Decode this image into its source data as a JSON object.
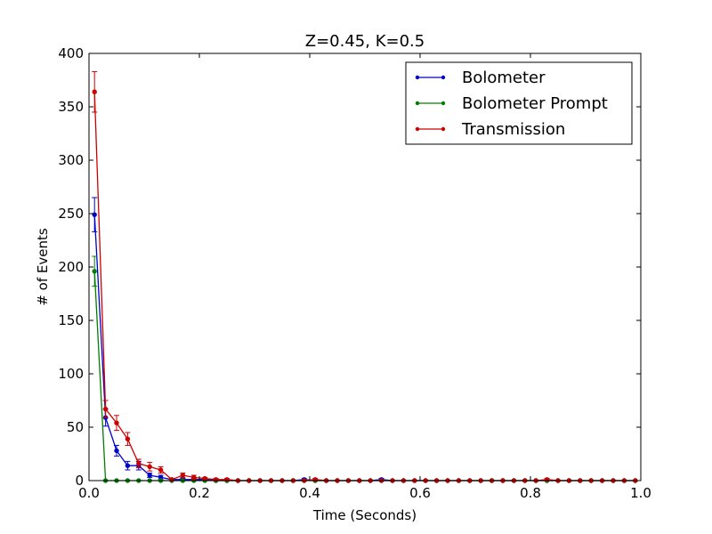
{
  "chart_data": {
    "type": "line",
    "title": "Z=0.45, K=0.5",
    "xlabel": "Time (Seconds)",
    "ylabel": "# of Events",
    "xlim": [
      0.0,
      1.0
    ],
    "ylim": [
      0,
      400
    ],
    "x_ticks": [
      0.0,
      0.2,
      0.4,
      0.6,
      0.8,
      1.0
    ],
    "x_tick_labels": [
      "0.0",
      "0.2",
      "0.4",
      "0.6",
      "0.8",
      "1.0"
    ],
    "y_ticks": [
      0,
      50,
      100,
      150,
      200,
      250,
      300,
      350,
      400
    ],
    "y_tick_labels": [
      "0",
      "50",
      "100",
      "150",
      "200",
      "250",
      "300",
      "350",
      "400"
    ],
    "grid": false,
    "legend_position": "top-right",
    "x": [
      0.01,
      0.03,
      0.05,
      0.07,
      0.09,
      0.11,
      0.13,
      0.15,
      0.17,
      0.19,
      0.21,
      0.23,
      0.25,
      0.27,
      0.29,
      0.31,
      0.33,
      0.35,
      0.37,
      0.39,
      0.41,
      0.43,
      0.45,
      0.47,
      0.49,
      0.51,
      0.53,
      0.55,
      0.57,
      0.59,
      0.61,
      0.63,
      0.65,
      0.67,
      0.69,
      0.71,
      0.73,
      0.75,
      0.77,
      0.79,
      0.81,
      0.83,
      0.85,
      0.87,
      0.89,
      0.91,
      0.93,
      0.95,
      0.97,
      0.99
    ],
    "series": [
      {
        "name": "Bolometer",
        "color": "#0000cc",
        "values": [
          249,
          59,
          28,
          14,
          14,
          5,
          3,
          1,
          1,
          1,
          1,
          0,
          0,
          0,
          0,
          0,
          0,
          0,
          0,
          1,
          0,
          0,
          0,
          0,
          0,
          0,
          1,
          0,
          0,
          0,
          0,
          0,
          0,
          0,
          0,
          0,
          0,
          0,
          0,
          0,
          0,
          0,
          0,
          0,
          0,
          0,
          0,
          0,
          0,
          0
        ],
        "errors": [
          16,
          8,
          5,
          4,
          4,
          2,
          2,
          1,
          1,
          1,
          1,
          0,
          0,
          0,
          0,
          0,
          0,
          0,
          0,
          1,
          0,
          0,
          0,
          0,
          0,
          0,
          1,
          0,
          0,
          0,
          0,
          0,
          0,
          0,
          0,
          0,
          0,
          0,
          0,
          0,
          0,
          0,
          0,
          0,
          0,
          0,
          0,
          0,
          0,
          0
        ]
      },
      {
        "name": "Bolometer Prompt",
        "color": "#008000",
        "values": [
          196,
          0,
          0,
          0,
          0,
          0,
          0,
          0,
          0,
          0,
          0,
          0,
          0,
          0,
          0,
          0,
          0,
          0,
          0,
          0,
          0,
          0,
          0,
          0,
          0,
          0,
          0,
          0,
          0,
          0,
          0,
          0,
          0,
          0,
          0,
          0,
          0,
          0,
          0,
          0,
          0,
          0,
          0,
          0,
          0,
          0,
          0,
          0,
          0,
          0
        ],
        "errors": [
          14,
          0,
          0,
          0,
          0,
          0,
          0,
          0,
          0,
          0,
          0,
          0,
          0,
          0,
          0,
          0,
          0,
          0,
          0,
          0,
          0,
          0,
          0,
          0,
          0,
          0,
          0,
          0,
          0,
          0,
          0,
          0,
          0,
          0,
          0,
          0,
          0,
          0,
          0,
          0,
          0,
          0,
          0,
          0,
          0,
          0,
          0,
          0,
          0,
          0
        ]
      },
      {
        "name": "Transmission",
        "color": "#cc0000",
        "values": [
          364,
          67,
          54,
          39,
          16,
          13,
          10,
          1,
          5,
          3,
          2,
          1,
          1,
          0,
          0,
          0,
          0,
          0,
          0,
          0,
          1,
          0,
          0,
          0,
          0,
          0,
          0,
          0,
          0,
          0,
          0,
          0,
          0,
          0,
          0,
          0,
          0,
          0,
          0,
          0,
          0,
          1,
          0,
          0,
          0,
          0,
          0,
          0,
          0,
          0
        ],
        "errors": [
          19,
          8,
          7,
          6,
          4,
          4,
          3,
          1,
          2,
          2,
          1,
          1,
          1,
          0,
          0,
          0,
          0,
          0,
          0,
          0,
          1,
          0,
          0,
          0,
          0,
          0,
          0,
          0,
          0,
          0,
          0,
          0,
          0,
          0,
          0,
          0,
          0,
          0,
          0,
          0,
          0,
          1,
          0,
          0,
          0,
          0,
          0,
          0,
          0,
          0
        ]
      }
    ]
  }
}
